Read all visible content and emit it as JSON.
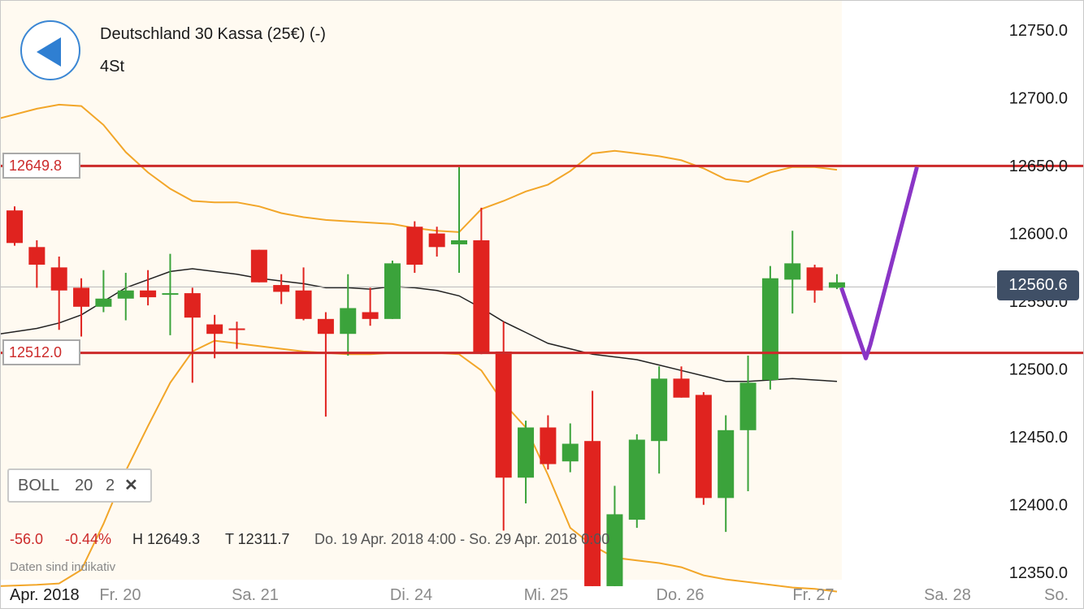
{
  "header": {
    "instrument": "Deutschland 30 Kassa (25€) (-)",
    "timeframe": "4St"
  },
  "colors": {
    "up": "#3ba33b",
    "down": "#e0231f",
    "bollinger_band": "#f2a629",
    "moving_average": "#222222",
    "horizontal_line": "#cc2a2a",
    "drawing": "#8a35c6",
    "price_tag_bg": "#3f4f66"
  },
  "indicator": {
    "name": "BOLL",
    "period": "20",
    "deviation": "2"
  },
  "stats": {
    "change": "-56.0",
    "change_pct": "-0.44%",
    "high": "H 12649.3",
    "low": "T 12311.7",
    "range": "Do. 19 Apr. 2018 4:00 - So. 29 Apr. 2018 0:00"
  },
  "disclaimer": "Daten sind indikativ",
  "current_price": "12560.6",
  "chart_data": {
    "type": "candlestick",
    "y_axis": {
      "min": 12340,
      "max": 12765,
      "ticks": [
        "12750.0",
        "12700.0",
        "12650.0",
        "12600.0",
        "12550.0",
        "12500.0",
        "12450.0",
        "12400.0",
        "12350.0"
      ]
    },
    "x_axis": {
      "labels": [
        "Apr. 2018",
        "Fr. 20",
        "Sa. 21",
        "Di. 24",
        "Mi. 25",
        "Do. 26",
        "Fr. 27",
        "Sa. 28",
        "So."
      ]
    },
    "horizontal_lines": [
      {
        "value": 12649.8,
        "label": "12649.8"
      },
      {
        "value": 12512.0,
        "label": "12512.0"
      }
    ],
    "last_price": 12560.6,
    "candles": [
      {
        "o": 12617,
        "h": 12620,
        "l": 12591,
        "c": 12593
      },
      {
        "o": 12590,
        "h": 12595,
        "l": 12560,
        "c": 12577
      },
      {
        "o": 12575,
        "h": 12583,
        "l": 12529,
        "c": 12558
      },
      {
        "o": 12560,
        "h": 12567,
        "l": 12524,
        "c": 12546
      },
      {
        "o": 12546,
        "h": 12573,
        "l": 12542,
        "c": 12552
      },
      {
        "o": 12552,
        "h": 12571,
        "l": 12536,
        "c": 12558
      },
      {
        "o": 12558,
        "h": 12573,
        "l": 12547,
        "c": 12553
      },
      {
        "o": 12555,
        "h": 12585,
        "l": 12525,
        "c": 12556
      },
      {
        "o": 12556,
        "h": 12560,
        "l": 12490,
        "c": 12538
      },
      {
        "o": 12533,
        "h": 12540,
        "l": 12508,
        "c": 12526
      },
      {
        "o": 12530,
        "h": 12535,
        "l": 12515,
        "c": 12529
      },
      {
        "o": 12588,
        "h": 12588,
        "l": 12564,
        "c": 12564
      },
      {
        "o": 12562,
        "h": 12570,
        "l": 12548,
        "c": 12557
      },
      {
        "o": 12558,
        "h": 12575,
        "l": 12536,
        "c": 12537
      },
      {
        "o": 12537,
        "h": 12542,
        "l": 12465,
        "c": 12526
      },
      {
        "o": 12526,
        "h": 12570,
        "l": 12510,
        "c": 12545
      },
      {
        "o": 12542,
        "h": 12560,
        "l": 12532,
        "c": 12537
      },
      {
        "o": 12537,
        "h": 12580,
        "l": 12537,
        "c": 12578
      },
      {
        "o": 12605,
        "h": 12609,
        "l": 12571,
        "c": 12577
      },
      {
        "o": 12600,
        "h": 12605,
        "l": 12583,
        "c": 12590
      },
      {
        "o": 12592,
        "h": 12649,
        "l": 12571,
        "c": 12595
      },
      {
        "o": 12595,
        "h": 12619,
        "l": 12511,
        "c": 12512
      },
      {
        "o": 12513,
        "h": 12535,
        "l": 12381,
        "c": 12420
      },
      {
        "o": 12420,
        "h": 12462,
        "l": 12401,
        "c": 12457
      },
      {
        "o": 12457,
        "h": 12466,
        "l": 12426,
        "c": 12430
      },
      {
        "o": 12432,
        "h": 12460,
        "l": 12424,
        "c": 12445
      },
      {
        "o": 12447,
        "h": 12484,
        "l": 12340,
        "c": 12340
      },
      {
        "o": 12340,
        "h": 12414,
        "l": 12340,
        "c": 12393
      },
      {
        "o": 12389,
        "h": 12452,
        "l": 12383,
        "c": 12448
      },
      {
        "o": 12447,
        "h": 12502,
        "l": 12423,
        "c": 12493
      },
      {
        "o": 12493,
        "h": 12502,
        "l": 12479,
        "c": 12479
      },
      {
        "o": 12481,
        "h": 12483,
        "l": 12400,
        "c": 12405
      },
      {
        "o": 12405,
        "h": 12466,
        "l": 12380,
        "c": 12455
      },
      {
        "o": 12455,
        "h": 12510,
        "l": 12410,
        "c": 12490
      },
      {
        "o": 12492,
        "h": 12576,
        "l": 12485,
        "c": 12567
      },
      {
        "o": 12566,
        "h": 12602,
        "l": 12541,
        "c": 12578
      },
      {
        "o": 12575,
        "h": 12577,
        "l": 12549,
        "c": 12558
      },
      {
        "o": 12560,
        "h": 12570,
        "l": 12559,
        "c": 12564
      }
    ],
    "bollinger_upper": [
      12685,
      12692,
      12695,
      12694,
      12680,
      12660,
      12645,
      12633,
      12624,
      12623,
      12623,
      12620,
      12615,
      12612,
      12610,
      12609,
      12608,
      12607,
      12604,
      12602,
      12601,
      12618,
      12624,
      12631,
      12636,
      12646,
      12659,
      12661,
      12659,
      12657,
      12654,
      12648,
      12640,
      12638,
      12645,
      12649,
      12649,
      12647
    ],
    "bollinger_mid": [
      12526,
      12530,
      12534,
      12540,
      12550,
      12560,
      12566,
      12572,
      12574,
      12572,
      12570,
      12567,
      12565,
      12563,
      12560,
      12560,
      12559,
      12561,
      12560,
      12558,
      12554,
      12545,
      12535,
      12527,
      12519,
      12515,
      12511,
      12509,
      12507,
      12503,
      12499,
      12495,
      12491,
      12491,
      12492,
      12493,
      12492,
      12491
    ],
    "bollinger_lower": [
      12340,
      12341,
      12342,
      12352,
      12386,
      12425,
      12458,
      12490,
      12513,
      12521,
      12519,
      12517,
      12515,
      12513,
      12512,
      12511,
      12511,
      12512,
      12512,
      12512,
      12511,
      12499,
      12475,
      12457,
      12422,
      12383,
      12370,
      12361,
      12359,
      12357,
      12354,
      12348,
      12345,
      12343,
      12341,
      12339,
      12338,
      12336
    ],
    "drawing_polyline": [
      {
        "bar": 37.2,
        "value": 12560
      },
      {
        "bar": 38.3,
        "value": 12508
      },
      {
        "bar": 38.5,
        "value": 12518
      },
      {
        "bar": 40.6,
        "value": 12649
      }
    ]
  }
}
